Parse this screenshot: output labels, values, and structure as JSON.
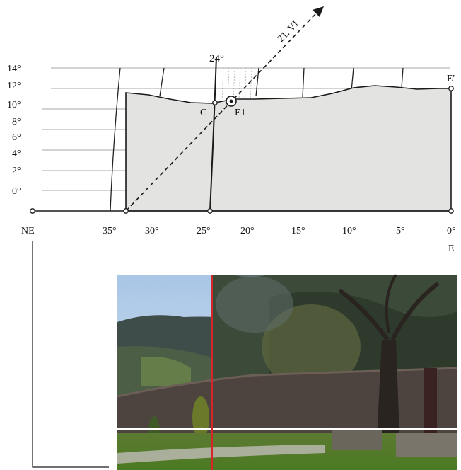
{
  "diagram": {
    "y_axis_labels": [
      "14°",
      "12°",
      "10°",
      "8°",
      "6°",
      "4°",
      "2°",
      "0°"
    ],
    "x_axis_labels": [
      "35°",
      "30°",
      "25°",
      "20°",
      "15°",
      "10°",
      "5°",
      "0°"
    ],
    "direction_left": "NE",
    "direction_right": "E",
    "corner_label": "E'",
    "sun_line_label": "21. VI",
    "meridian_label": "24°",
    "point_c_label": "C",
    "point_e1_label": "E1",
    "colors": {
      "horizon_fill": "#e3e3e1",
      "line": "#1a1a1a",
      "grid": "#8a8a8a",
      "marker_red": "#d6262a"
    }
  },
  "photo": {
    "description_icon": "landscape-photo"
  }
}
